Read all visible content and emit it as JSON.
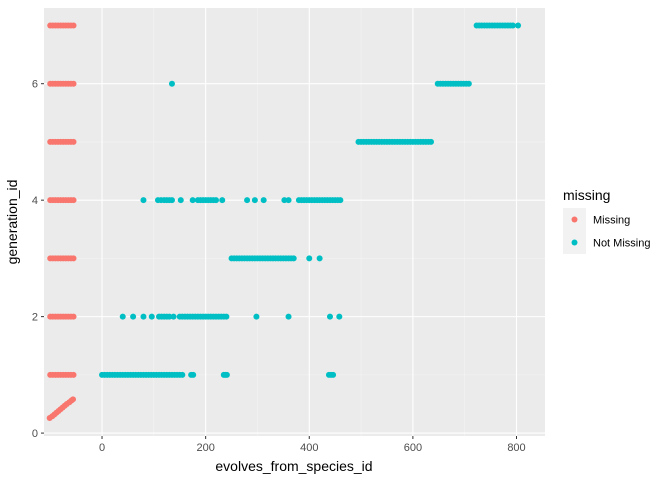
{
  "chart_data": {
    "type": "scatter",
    "title": "",
    "xlabel": "evolves_from_species_id",
    "ylabel": "generation_id",
    "xlim": [
      -112,
      855
    ],
    "ylim": [
      -0.05,
      7.3
    ],
    "x_ticks": [
      0,
      200,
      400,
      600,
      800
    ],
    "y_ticks": [
      0,
      2,
      4,
      6
    ],
    "grid": true,
    "legend": {
      "title": "missing",
      "position": "right"
    },
    "series": [
      {
        "name": "Missing",
        "color": "#F8766D",
        "points": [
          [
            -100,
            7
          ],
          [
            -95,
            7
          ],
          [
            -90,
            7
          ],
          [
            -85,
            7
          ],
          [
            -80,
            7
          ],
          [
            -75,
            7
          ],
          [
            -70,
            7
          ],
          [
            -65,
            7
          ],
          [
            -60,
            7
          ],
          [
            -55,
            7
          ],
          [
            -100,
            6
          ],
          [
            -95,
            6
          ],
          [
            -90,
            6
          ],
          [
            -85,
            6
          ],
          [
            -80,
            6
          ],
          [
            -75,
            6
          ],
          [
            -70,
            6
          ],
          [
            -65,
            6
          ],
          [
            -60,
            6
          ],
          [
            -55,
            6
          ],
          [
            -100,
            5
          ],
          [
            -95,
            5
          ],
          [
            -90,
            5
          ],
          [
            -85,
            5
          ],
          [
            -80,
            5
          ],
          [
            -75,
            5
          ],
          [
            -70,
            5
          ],
          [
            -65,
            5
          ],
          [
            -60,
            5
          ],
          [
            -55,
            5
          ],
          [
            -100,
            4
          ],
          [
            -95,
            4
          ],
          [
            -90,
            4
          ],
          [
            -85,
            4
          ],
          [
            -80,
            4
          ],
          [
            -75,
            4
          ],
          [
            -70,
            4
          ],
          [
            -65,
            4
          ],
          [
            -60,
            4
          ],
          [
            -55,
            4
          ],
          [
            -100,
            3
          ],
          [
            -95,
            3
          ],
          [
            -90,
            3
          ],
          [
            -85,
            3
          ],
          [
            -80,
            3
          ],
          [
            -75,
            3
          ],
          [
            -70,
            3
          ],
          [
            -65,
            3
          ],
          [
            -60,
            3
          ],
          [
            -55,
            3
          ],
          [
            -100,
            2
          ],
          [
            -95,
            2
          ],
          [
            -90,
            2
          ],
          [
            -85,
            2
          ],
          [
            -80,
            2
          ],
          [
            -75,
            2
          ],
          [
            -70,
            2
          ],
          [
            -65,
            2
          ],
          [
            -60,
            2
          ],
          [
            -55,
            2
          ],
          [
            -100,
            1
          ],
          [
            -95,
            1
          ],
          [
            -90,
            1
          ],
          [
            -85,
            1
          ],
          [
            -80,
            1
          ],
          [
            -75,
            1
          ],
          [
            -70,
            1
          ],
          [
            -65,
            1
          ],
          [
            -60,
            1
          ],
          [
            -55,
            1
          ],
          [
            -101,
            0.26
          ],
          [
            -96,
            0.29
          ],
          [
            -92,
            0.32
          ],
          [
            -88,
            0.35
          ],
          [
            -84,
            0.38
          ],
          [
            -80,
            0.41
          ],
          [
            -76,
            0.44
          ],
          [
            -72,
            0.47
          ],
          [
            -68,
            0.5
          ],
          [
            -63,
            0.53
          ],
          [
            -59,
            0.56
          ],
          [
            -56,
            0.58
          ]
        ]
      },
      {
        "name": "Not Missing",
        "color": "#00BFC4",
        "points": [
          [
            0,
            1
          ],
          [
            5,
            1
          ],
          [
            10,
            1
          ],
          [
            15,
            1
          ],
          [
            20,
            1
          ],
          [
            25,
            1
          ],
          [
            30,
            1
          ],
          [
            35,
            1
          ],
          [
            40,
            1
          ],
          [
            45,
            1
          ],
          [
            50,
            1
          ],
          [
            55,
            1
          ],
          [
            60,
            1
          ],
          [
            65,
            1
          ],
          [
            70,
            1
          ],
          [
            75,
            1
          ],
          [
            80,
            1
          ],
          [
            85,
            1
          ],
          [
            90,
            1
          ],
          [
            95,
            1
          ],
          [
            100,
            1
          ],
          [
            105,
            1
          ],
          [
            110,
            1
          ],
          [
            115,
            1
          ],
          [
            120,
            1
          ],
          [
            125,
            1
          ],
          [
            130,
            1
          ],
          [
            135,
            1
          ],
          [
            140,
            1
          ],
          [
            145,
            1
          ],
          [
            150,
            1
          ],
          [
            155,
            1
          ],
          [
            172,
            1
          ],
          [
            176,
            1
          ],
          [
            235,
            1
          ],
          [
            238,
            1
          ],
          [
            241,
            1
          ],
          [
            438,
            1
          ],
          [
            442,
            1
          ],
          [
            446,
            1
          ],
          [
            40,
            2
          ],
          [
            60,
            2
          ],
          [
            80,
            2
          ],
          [
            96,
            2
          ],
          [
            110,
            2
          ],
          [
            115,
            2
          ],
          [
            120,
            2
          ],
          [
            125,
            2
          ],
          [
            130,
            2
          ],
          [
            138,
            2
          ],
          [
            150,
            2
          ],
          [
            155,
            2
          ],
          [
            160,
            2
          ],
          [
            165,
            2
          ],
          [
            170,
            2
          ],
          [
            175,
            2
          ],
          [
            180,
            2
          ],
          [
            185,
            2
          ],
          [
            190,
            2
          ],
          [
            195,
            2
          ],
          [
            200,
            2
          ],
          [
            205,
            2
          ],
          [
            210,
            2
          ],
          [
            215,
            2
          ],
          [
            220,
            2
          ],
          [
            225,
            2
          ],
          [
            230,
            2
          ],
          [
            235,
            2
          ],
          [
            240,
            2
          ],
          [
            298,
            2
          ],
          [
            360,
            2
          ],
          [
            440,
            2
          ],
          [
            458,
            2
          ],
          [
            250,
            3
          ],
          [
            255,
            3
          ],
          [
            260,
            3
          ],
          [
            265,
            3
          ],
          [
            270,
            3
          ],
          [
            275,
            3
          ],
          [
            280,
            3
          ],
          [
            285,
            3
          ],
          [
            290,
            3
          ],
          [
            295,
            3
          ],
          [
            300,
            3
          ],
          [
            305,
            3
          ],
          [
            310,
            3
          ],
          [
            315,
            3
          ],
          [
            320,
            3
          ],
          [
            325,
            3
          ],
          [
            330,
            3
          ],
          [
            335,
            3
          ],
          [
            340,
            3
          ],
          [
            345,
            3
          ],
          [
            350,
            3
          ],
          [
            355,
            3
          ],
          [
            360,
            3
          ],
          [
            365,
            3
          ],
          [
            370,
            3
          ],
          [
            400,
            3
          ],
          [
            420,
            3
          ],
          [
            80,
            4
          ],
          [
            108,
            4
          ],
          [
            114,
            4
          ],
          [
            120,
            4
          ],
          [
            125,
            4
          ],
          [
            130,
            4
          ],
          [
            135,
            4
          ],
          [
            152,
            4
          ],
          [
            175,
            4
          ],
          [
            185,
            4
          ],
          [
            190,
            4
          ],
          [
            195,
            4
          ],
          [
            200,
            4
          ],
          [
            205,
            4
          ],
          [
            210,
            4
          ],
          [
            215,
            4
          ],
          [
            220,
            4
          ],
          [
            232,
            4
          ],
          [
            280,
            4
          ],
          [
            295,
            4
          ],
          [
            312,
            4
          ],
          [
            352,
            4
          ],
          [
            360,
            4
          ],
          [
            380,
            4
          ],
          [
            385,
            4
          ],
          [
            390,
            4
          ],
          [
            395,
            4
          ],
          [
            400,
            4
          ],
          [
            405,
            4
          ],
          [
            410,
            4
          ],
          [
            415,
            4
          ],
          [
            420,
            4
          ],
          [
            425,
            4
          ],
          [
            430,
            4
          ],
          [
            435,
            4
          ],
          [
            440,
            4
          ],
          [
            445,
            4
          ],
          [
            450,
            4
          ],
          [
            455,
            4
          ],
          [
            460,
            4
          ],
          [
            495,
            5
          ],
          [
            500,
            5
          ],
          [
            505,
            5
          ],
          [
            510,
            5
          ],
          [
            515,
            5
          ],
          [
            520,
            5
          ],
          [
            525,
            5
          ],
          [
            530,
            5
          ],
          [
            535,
            5
          ],
          [
            540,
            5
          ],
          [
            545,
            5
          ],
          [
            550,
            5
          ],
          [
            555,
            5
          ],
          [
            560,
            5
          ],
          [
            565,
            5
          ],
          [
            570,
            5
          ],
          [
            575,
            5
          ],
          [
            580,
            5
          ],
          [
            585,
            5
          ],
          [
            590,
            5
          ],
          [
            595,
            5
          ],
          [
            600,
            5
          ],
          [
            605,
            5
          ],
          [
            610,
            5
          ],
          [
            615,
            5
          ],
          [
            620,
            5
          ],
          [
            625,
            5
          ],
          [
            630,
            5
          ],
          [
            635,
            5
          ],
          [
            135,
            6
          ],
          [
            648,
            6
          ],
          [
            653,
            6
          ],
          [
            658,
            6
          ],
          [
            663,
            6
          ],
          [
            668,
            6
          ],
          [
            673,
            6
          ],
          [
            678,
            6
          ],
          [
            683,
            6
          ],
          [
            688,
            6
          ],
          [
            693,
            6
          ],
          [
            698,
            6
          ],
          [
            703,
            6
          ],
          [
            708,
            6
          ],
          [
            723,
            7
          ],
          [
            728,
            7
          ],
          [
            733,
            7
          ],
          [
            738,
            7
          ],
          [
            743,
            7
          ],
          [
            748,
            7
          ],
          [
            753,
            7
          ],
          [
            758,
            7
          ],
          [
            763,
            7
          ],
          [
            768,
            7
          ],
          [
            773,
            7
          ],
          [
            778,
            7
          ],
          [
            783,
            7
          ],
          [
            788,
            7
          ],
          [
            793,
            7
          ],
          [
            803,
            7
          ]
        ]
      }
    ]
  }
}
